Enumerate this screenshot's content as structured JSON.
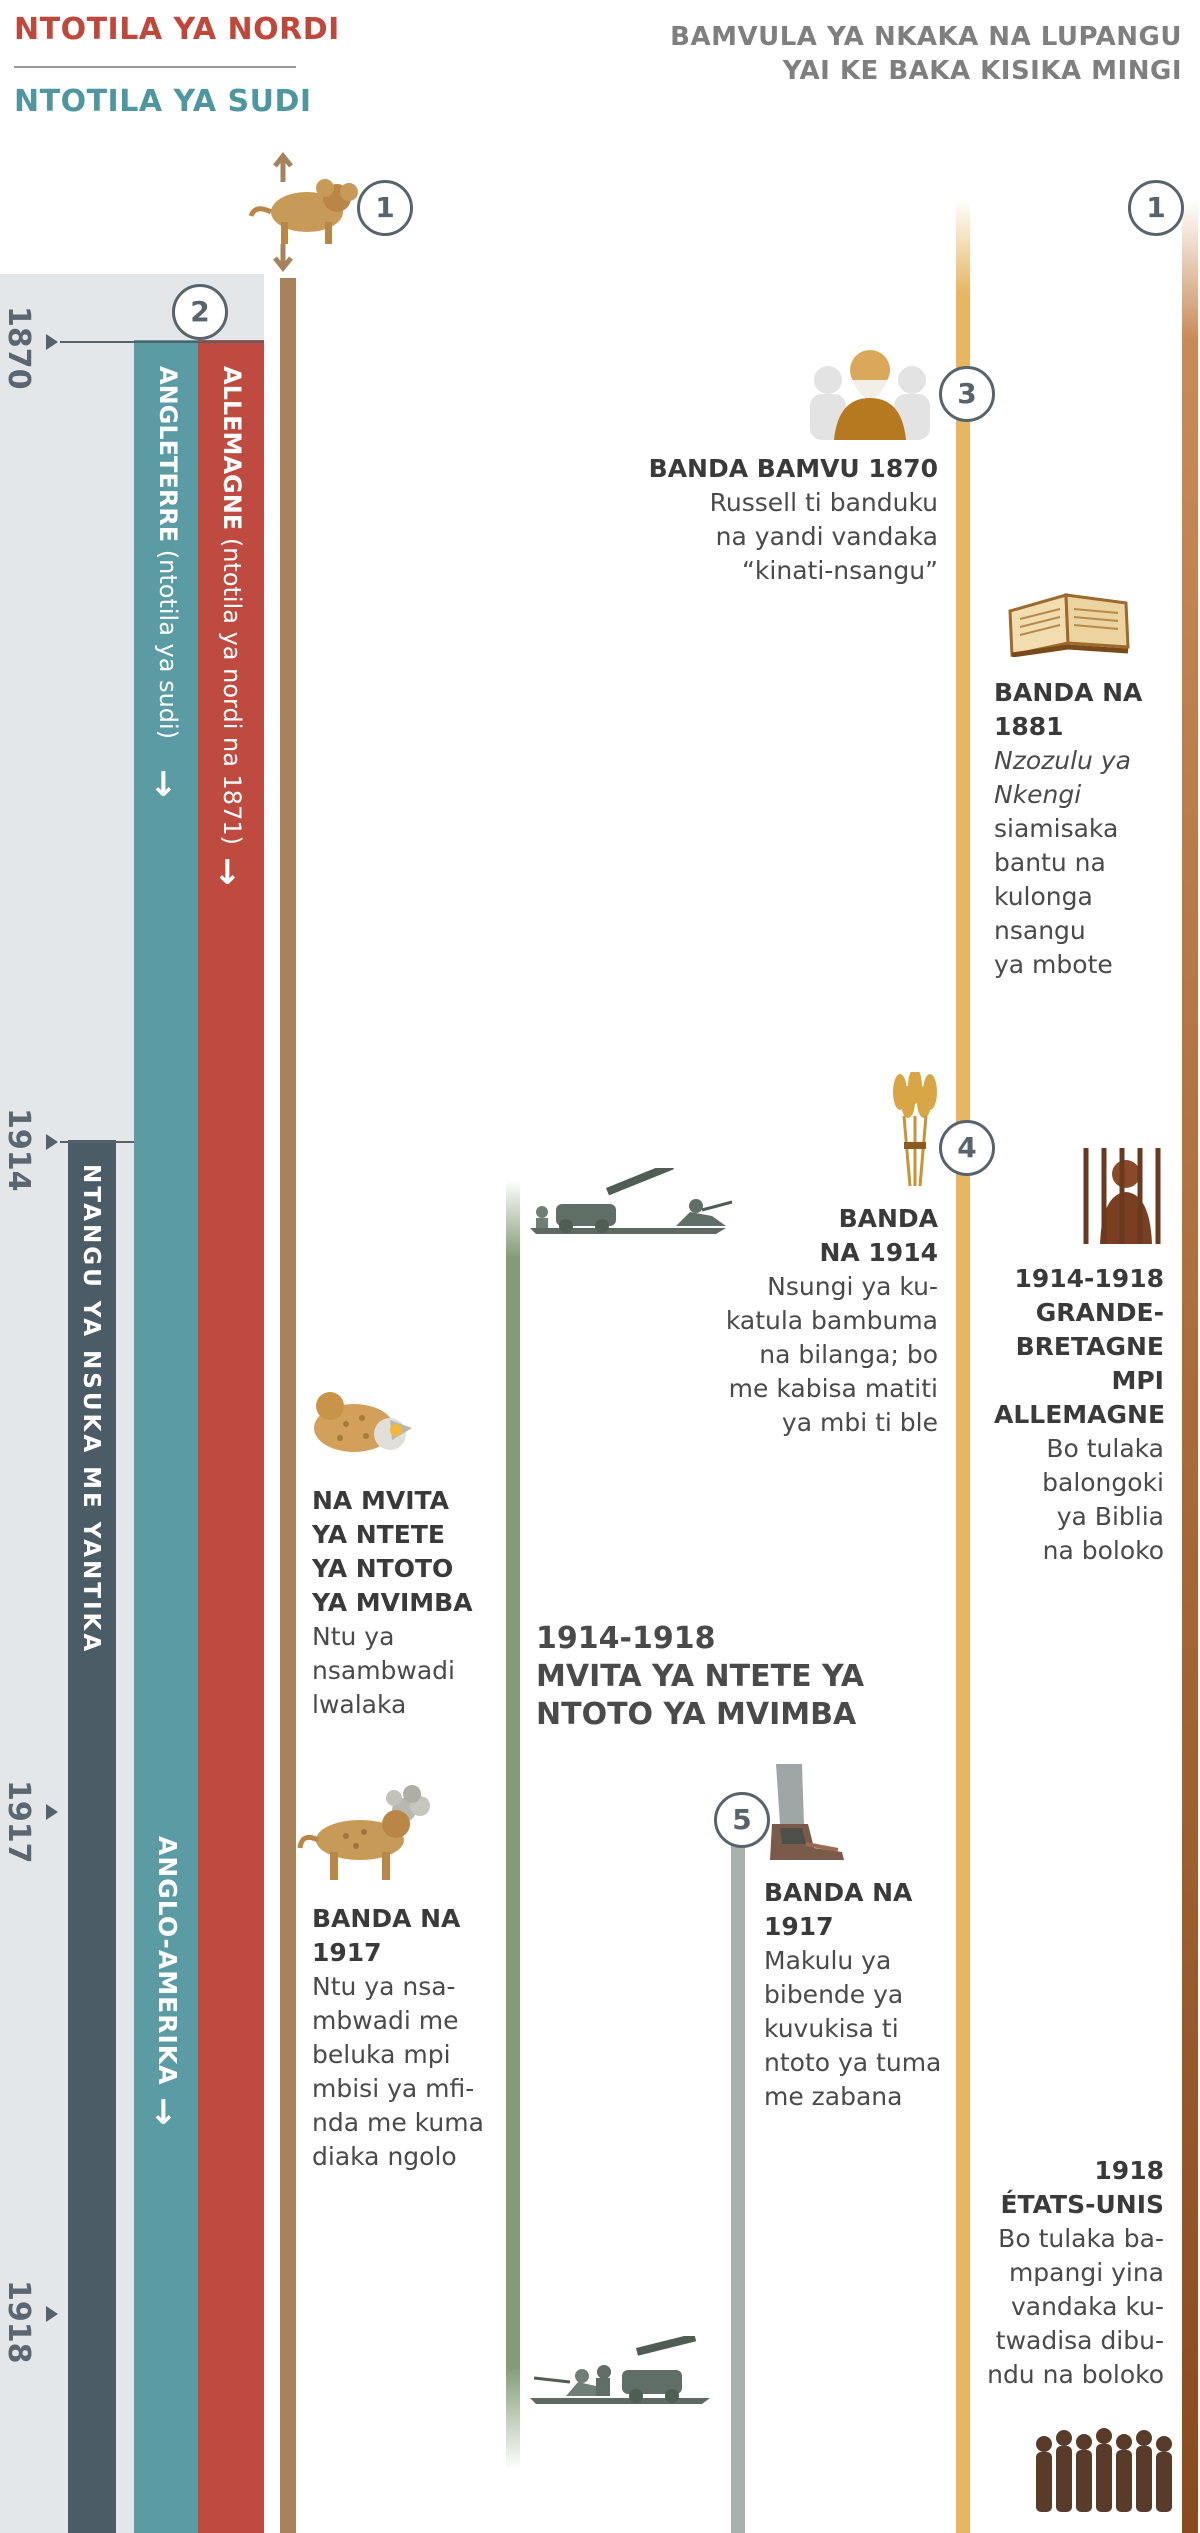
{
  "header": {
    "north": "NTOTILA YA NORDI",
    "south": "NTOTILA YA SUDI",
    "right_line1": "BAMVULA YA NKAKA NA LUPANGU",
    "right_line2": "YAI KE BAKA KISIKA MINGI"
  },
  "years": [
    "1870",
    "1914",
    "1917",
    "1918"
  ],
  "circles": {
    "c1": "1",
    "c2": "2",
    "c3": "3",
    "c4": "4",
    "c5": "5",
    "c1r": "1"
  },
  "bands": {
    "red_label": "ALLEMAGNE",
    "red_sub": " (ntotila ya nordi na 1871)",
    "teal_label": "ANGLETERRE",
    "teal_sub": " (ntotila ya sudi)",
    "dark_label": "NTANGU YA NSUKA ME YANTIKA",
    "anglo_label": "ANGLO-AMERIKA",
    "arrow": "↓"
  },
  "events": {
    "e1870": {
      "head": "BANDA BAMVU 1870",
      "lines": [
        "Russell ti banduku",
        "na yandi vandaka",
        "“kinati-nsangu”"
      ]
    },
    "e1881": {
      "head1": "BANDA NA",
      "head2": "1881",
      "italic1": "Nzozulu ya",
      "italic2": "Nkengi",
      "lines": [
        "siamisaka",
        "bantu na",
        "kulonga",
        "nsangu",
        "ya mbote"
      ]
    },
    "e1914": {
      "head1": "BANDA",
      "head2": "NA 1914",
      "lines": [
        "Nsungi ya ku-",
        "katula bambuma",
        "na bilanga; bo",
        "me kabisa matiti",
        "ya mbi ti ble"
      ]
    },
    "e1914_18": {
      "head": [
        "1914-1918",
        "GRANDE-",
        "BRETAGNE",
        "MPI",
        "ALLEMAGNE"
      ],
      "lines": [
        "Bo tulaka",
        "balongoki",
        "ya Biblia",
        "na boloko"
      ]
    },
    "war_beast": {
      "head": [
        "NA MVITA",
        "YA NTETE",
        "YA NTOTO",
        "YA MVIMBA"
      ],
      "lines": [
        "Ntu ya",
        "nsambwadi",
        "lwalaka"
      ]
    },
    "ww1": {
      "line1": "1914-1918",
      "line2": "MVITA YA NTETE YA",
      "line3": "NTOTO YA MVIMBA"
    },
    "e1917_beast": {
      "head1": "BANDA NA",
      "head2": "1917",
      "lines": [
        "Ntu ya nsa-",
        "mbwadi me",
        "beluka mpi",
        "mbisi ya mfi-",
        "nda me kuma",
        "diaka ngolo"
      ]
    },
    "e1917_feet": {
      "head1": "BANDA NA",
      "head2": "1917",
      "lines": [
        "Makulu ya",
        "bibende ya",
        "kuvukisa ti",
        "ntoto ya tuma",
        "me zabana"
      ]
    },
    "e1918": {
      "head1": "1918",
      "head2": "ÉTATS-UNIS",
      "lines": [
        "Bo tulaka ba-",
        "mpangi yina",
        "vandaka ku-",
        "twadisa dibu-",
        "ndu na boloko"
      ]
    }
  },
  "icons": [
    "lion-beast-icon",
    "russell-portrait-icon",
    "bible-book-icon",
    "wheat-sheaf-icon",
    "prisoner-icon",
    "wounded-beast-icon",
    "soldiers-icon",
    "healed-beast-icon",
    "iron-clay-feet-icon",
    "prisoners-group-icon"
  ],
  "colors": {
    "red": "#bf4a40",
    "teal": "#5b9ba3",
    "dark": "#4c5c66",
    "gold": "#e8b560",
    "rust": "#8a4a1e",
    "green": "#839c76",
    "brown": "#a8825a"
  }
}
